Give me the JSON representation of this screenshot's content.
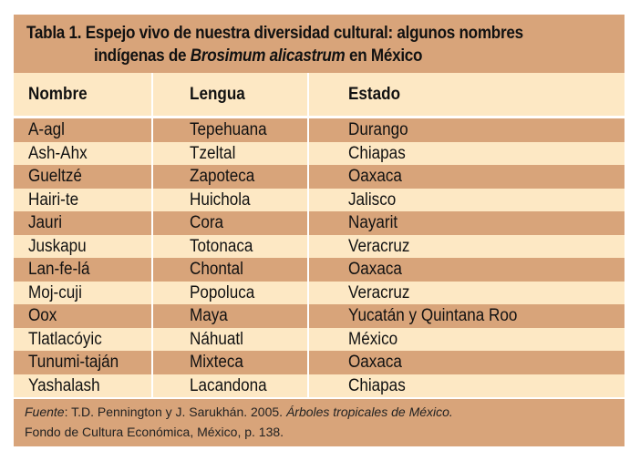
{
  "title": {
    "line1": "Tabla 1. Espejo vivo de nuestra diversidad cultural: algunos nombres",
    "line2_prefix": "indígenas de ",
    "line2_italic": "Brosimum alicastrum",
    "line2_suffix": " en México"
  },
  "columns": [
    "Nombre",
    "Lengua",
    "Estado"
  ],
  "rows": [
    [
      "A-agl",
      "Tepehuana",
      "Durango"
    ],
    [
      "Ash-Ahx",
      "Tzeltal",
      "Chiapas"
    ],
    [
      "Gueltzé",
      "Zapoteca",
      "Oaxaca"
    ],
    [
      "Hairi-te",
      "Huichola",
      "Jalisco"
    ],
    [
      "Jauri",
      "Cora",
      "Nayarit"
    ],
    [
      "Juskapu",
      "Totonaca",
      "Veracruz"
    ],
    [
      "Lan-fe-lá",
      "Chontal",
      "Oaxaca"
    ],
    [
      "Moj-cuji",
      "Popoluca",
      "Veracruz"
    ],
    [
      "Oox",
      "Maya",
      "Yucatán y Quintana Roo"
    ],
    [
      "Tlatlacóyic",
      "Náhuatl",
      "México"
    ],
    [
      "Tunumi-taján",
      "Mixteca",
      "Oaxaca"
    ],
    [
      "Yashalash",
      "Lacandona",
      "Chiapas"
    ]
  ],
  "footer": {
    "source_label": "Fuente",
    "source_text": ": T.D. Pennington y J. Sarukhán. 2005. ",
    "book_title": "Árboles tropicales de México.",
    "line2": "Fondo de Cultura Económica, México, p. 138."
  },
  "colors": {
    "dark_band": "#d8a47a",
    "light_band": "#fde8c4"
  }
}
